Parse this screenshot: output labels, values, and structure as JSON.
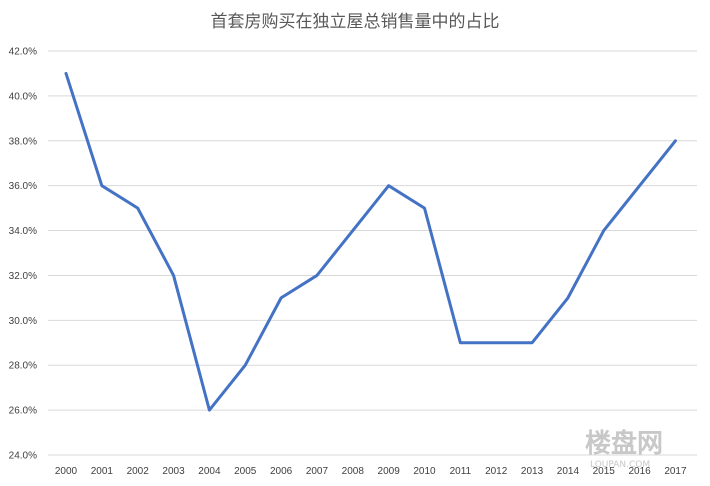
{
  "chart_data": {
    "type": "line",
    "title": "首套房购买在独立屋总销售量中的占比",
    "xlabel": "",
    "ylabel": "",
    "categories": [
      "2000",
      "2001",
      "2002",
      "2003",
      "2004",
      "2005",
      "2006",
      "2007",
      "2008",
      "2009",
      "2010",
      "2011",
      "2012",
      "2013",
      "2014",
      "2015",
      "2016",
      "2017"
    ],
    "series": [
      {
        "values": [
          41,
          36,
          35,
          32,
          26,
          28,
          31,
          32,
          34,
          36,
          35,
          29,
          29,
          29,
          31,
          34,
          36,
          38
        ]
      }
    ],
    "y_ticks": [
      "24.0%",
      "26.0%",
      "28.0%",
      "30.0%",
      "32.0%",
      "34.0%",
      "36.0%",
      "38.0%",
      "40.0%",
      "42.0%"
    ],
    "ylim": [
      24,
      42
    ],
    "grid": "horizontal",
    "legend": "none",
    "colors": {
      "line": "#4472c4",
      "grid": "#d9d9d9"
    }
  },
  "watermark": {
    "text": "楼盘网",
    "subtext": "LOUPAN.COM"
  }
}
